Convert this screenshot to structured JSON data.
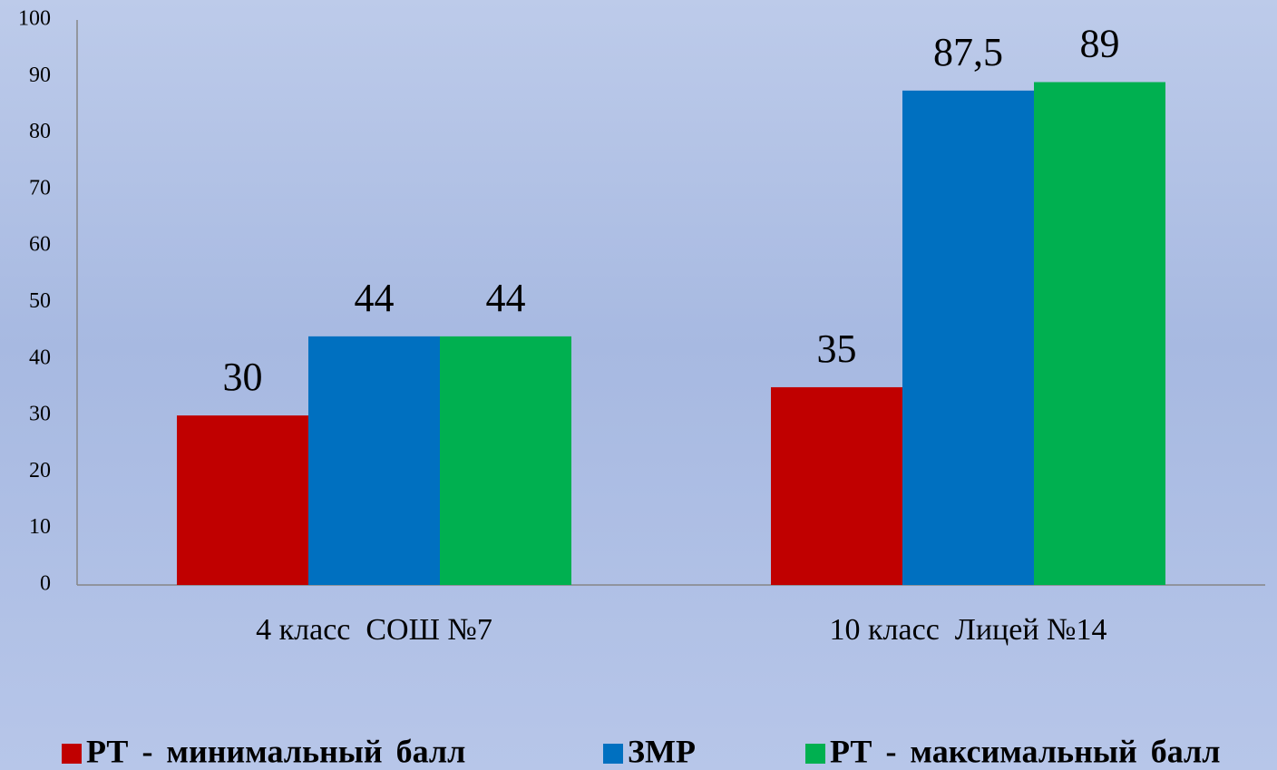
{
  "chart_data": {
    "type": "bar",
    "categories": [
      "4 класс  СОШ №7",
      "10 класс  Лицей №14"
    ],
    "series": [
      {
        "name": "РТ - минимальный балл",
        "color": "#c00000",
        "values": [
          30,
          35
        ]
      },
      {
        "name": "ЗМР",
        "color": "#0070c0",
        "values": [
          44,
          87.5
        ],
        "value_labels": [
          "44",
          "87,5"
        ]
      },
      {
        "name": "РТ - максимальный балл",
        "color": "#00b050",
        "values": [
          44,
          89
        ]
      }
    ],
    "ylim": [
      0,
      100
    ],
    "yticks": [
      0,
      10,
      20,
      30,
      40,
      50,
      60,
      70,
      80,
      90,
      100
    ],
    "grid": false,
    "legend": "bottom"
  }
}
